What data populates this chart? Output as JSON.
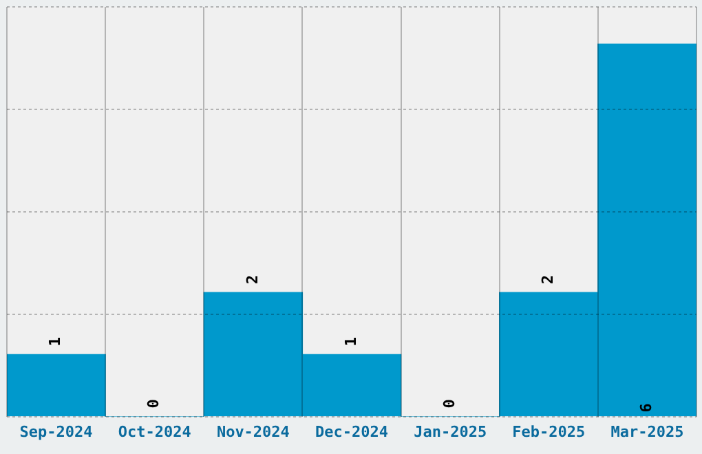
{
  "chart_data": {
    "type": "bar",
    "categories": [
      "Sep-2024",
      "Oct-2024",
      "Nov-2024",
      "Dec-2024",
      "Jan-2025",
      "Feb-2025",
      "Mar-2025"
    ],
    "values": [
      1,
      0,
      2,
      1,
      0,
      2,
      6
    ],
    "color": "#0099cc",
    "ylim": [
      0,
      6.6
    ],
    "yticks": [
      {
        "value": 0,
        "label": null
      },
      {
        "value": 1.65,
        "label": null
      },
      {
        "value": 3.3,
        "label": null
      },
      {
        "value": 4.95,
        "label": null
      },
      {
        "value": 6.6,
        "label": null
      }
    ],
    "tick_labels": "x",
    "grid": true,
    "data_labels": true
  }
}
